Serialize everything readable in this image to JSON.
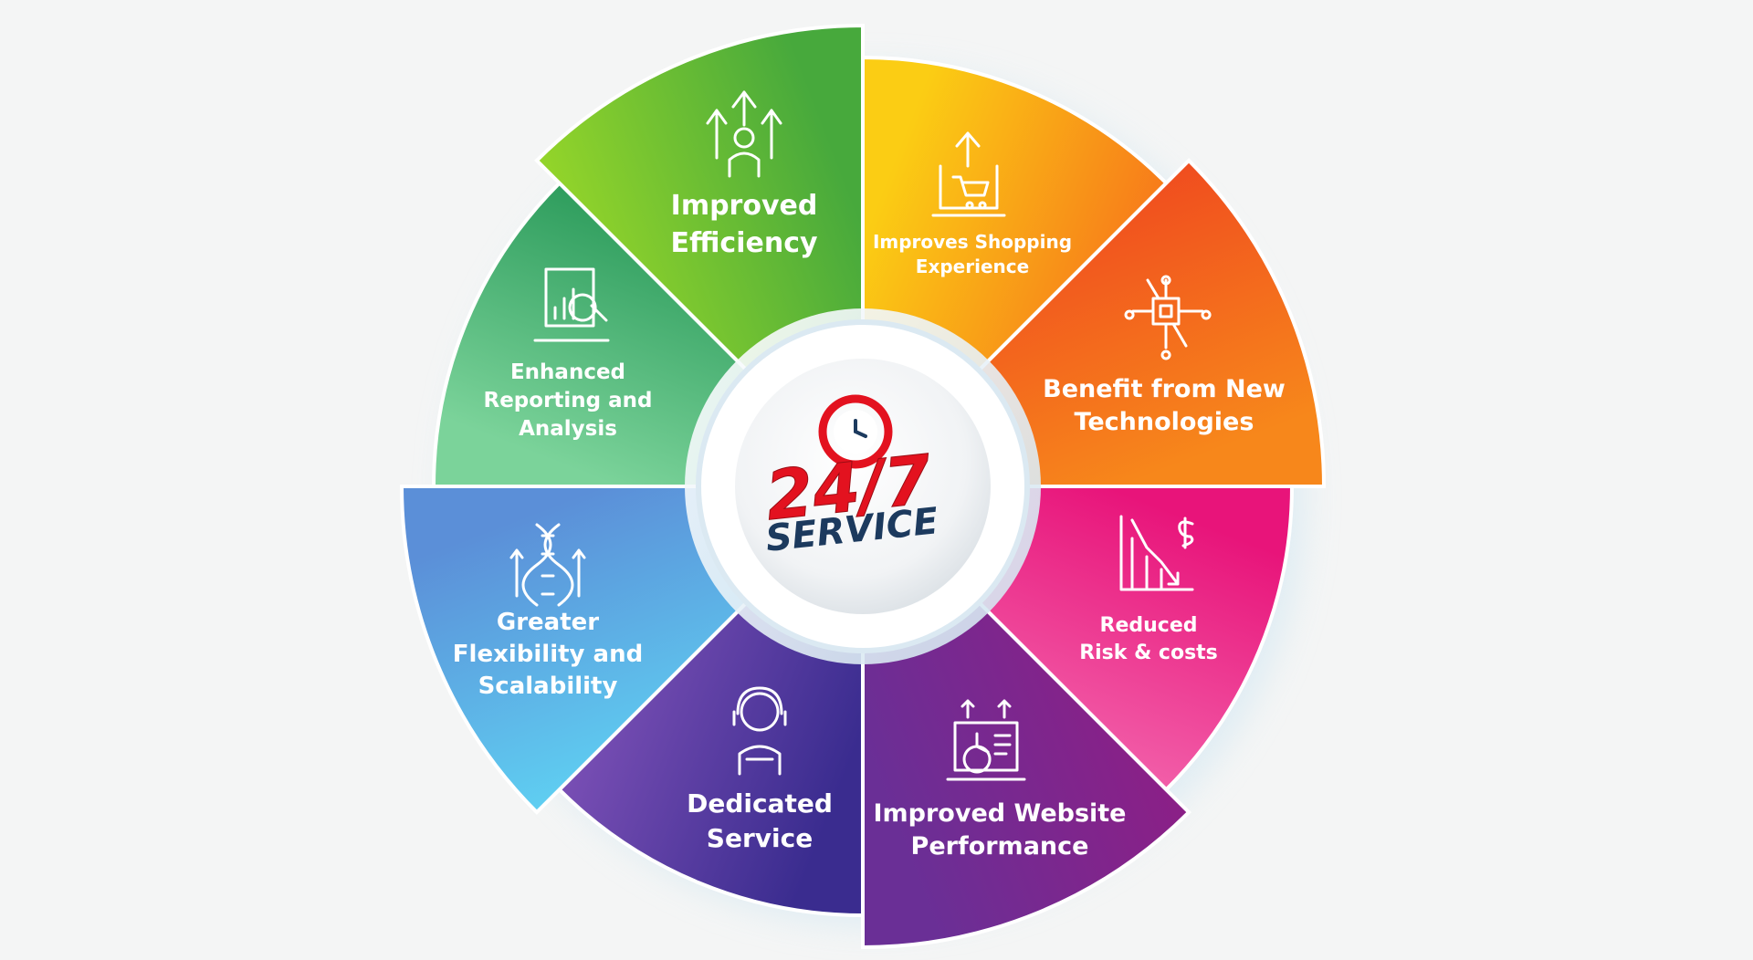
{
  "center": {
    "hours": "24/7",
    "word": "SERVICE",
    "colors": {
      "hours": "#e3121f",
      "word": "#1c3a5e",
      "clock": "#e3121f"
    }
  },
  "segments": [
    {
      "id": "efficiency",
      "lines": [
        "Improved",
        "Efficiency"
      ],
      "icon": "person-growth-arrows-icon",
      "colors": [
        "#96d629",
        "#47a93c"
      ]
    },
    {
      "id": "shopping",
      "lines": [
        "Improves Shopping",
        "Experience"
      ],
      "icon": "laptop-cart-icon",
      "colors": [
        "#fbcd14",
        "#f77a1a"
      ]
    },
    {
      "id": "technologies",
      "lines": [
        "Benefit from New",
        "Technologies"
      ],
      "icon": "circuit-chip-icon",
      "colors": [
        "#f04c1f",
        "#f7871b"
      ]
    },
    {
      "id": "risk",
      "lines": [
        "Reduced",
        "Risk & costs"
      ],
      "icon": "falling-chart-dollar-icon",
      "colors": [
        "#e8147a",
        "#f25fa9"
      ]
    },
    {
      "id": "website",
      "lines": [
        "Improved Website",
        "Performance"
      ],
      "icon": "laptop-pie-chart-icon",
      "colors": [
        "#8c1f86",
        "#6a2f96"
      ]
    },
    {
      "id": "dedicated",
      "lines": [
        "Dedicated",
        "Service"
      ],
      "icon": "support-agent-icon",
      "colors": [
        "#3a2c8f",
        "#7a4fb5"
      ]
    },
    {
      "id": "flexibility",
      "lines": [
        "Greater",
        "Flexibility and",
        "Scalability"
      ],
      "icon": "dna-arrows-icon",
      "colors": [
        "#5fd0f2",
        "#5b8fd8"
      ]
    },
    {
      "id": "reporting",
      "lines": [
        "Enhanced",
        "Reporting and",
        "Analysis"
      ],
      "icon": "report-magnifier-icon",
      "colors": [
        "#7bd39a",
        "#2d9c5c"
      ]
    }
  ]
}
